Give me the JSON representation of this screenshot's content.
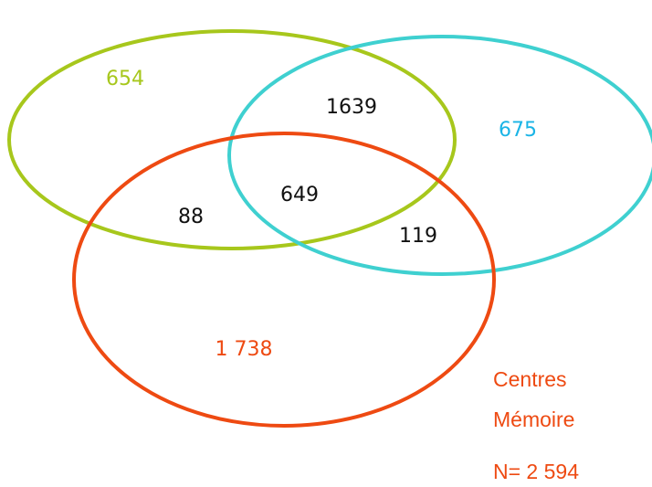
{
  "colors": {
    "green": "#a7c71c",
    "cyan": "#3fd0d0",
    "orange": "#ee4a12",
    "blue": "#1ab4e6",
    "text": "#111111"
  },
  "regions": {
    "green_only": "654",
    "cyan_only": "675",
    "orange_only": "1 738",
    "green_cyan": "1639",
    "all_three": "649",
    "green_orange": "88",
    "cyan_orange": "119"
  },
  "caption": {
    "line1": "Centres",
    "line2": "Mémoire",
    "total": "N= 2 594"
  }
}
